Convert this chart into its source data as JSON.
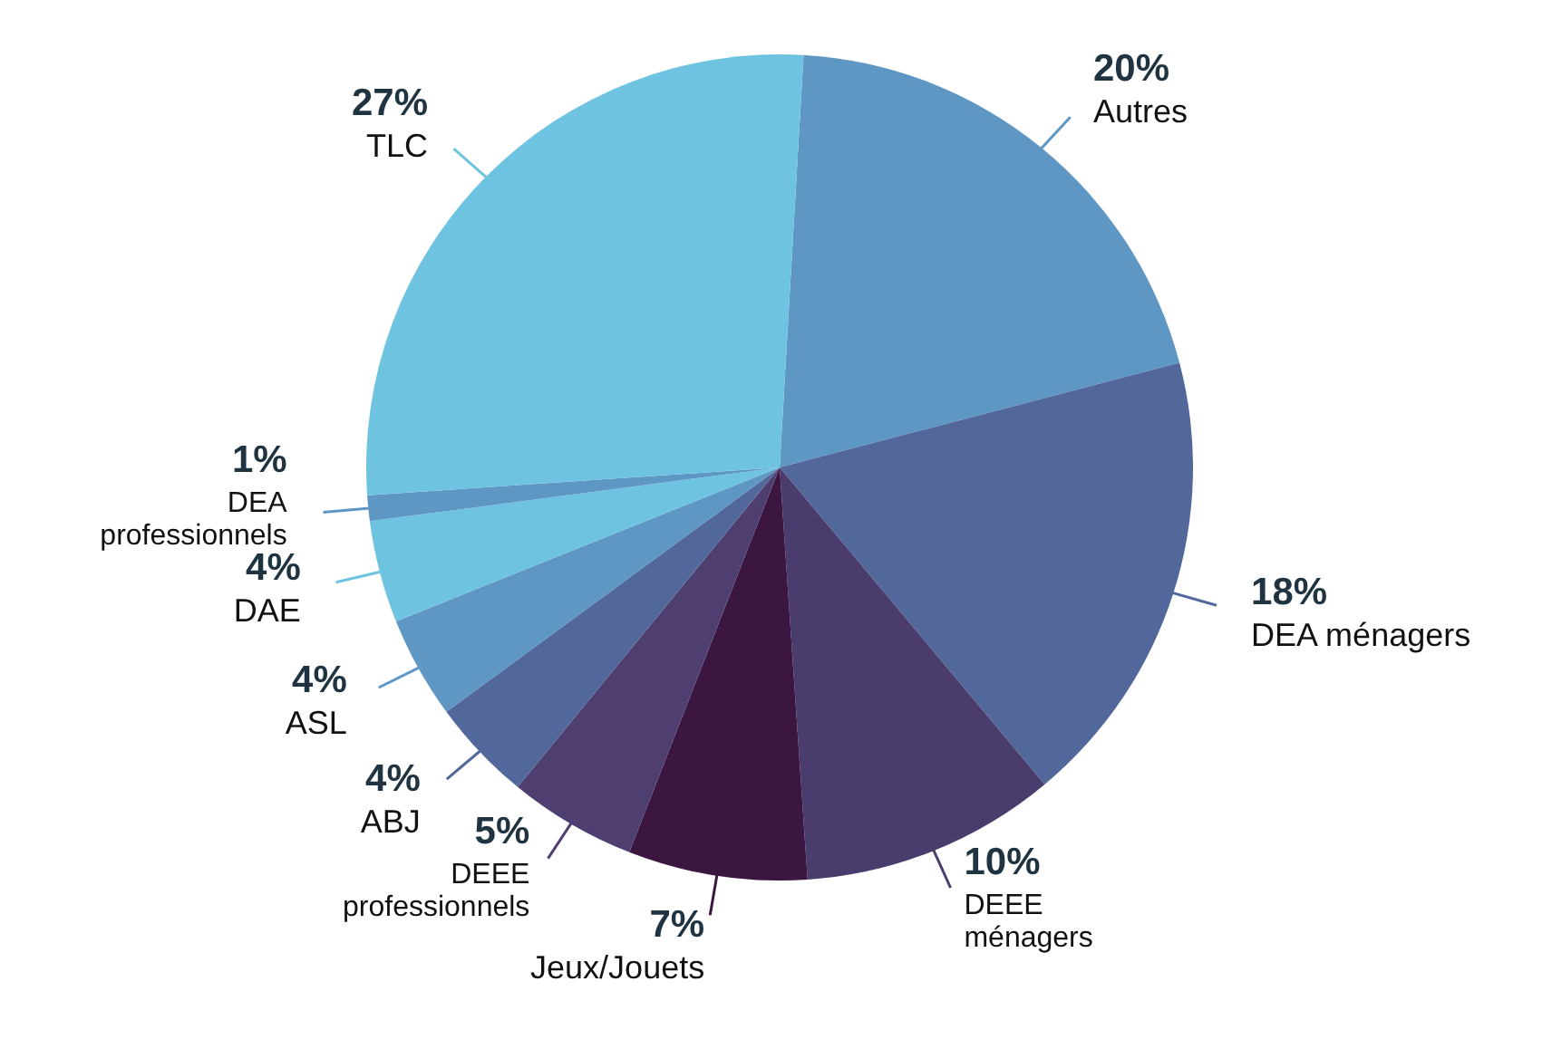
{
  "chart_data": {
    "type": "pie",
    "categories": [
      "Autres",
      "DEA ménagers",
      "DEEE ménagers",
      "Jeux/Jouets",
      "DEEE professionnels",
      "ABJ",
      "ASL",
      "DAE",
      "DEA professionnels",
      "TLC"
    ],
    "values": [
      20,
      18,
      10,
      7,
      5,
      4,
      4,
      4,
      1,
      27
    ],
    "value_labels": [
      "20%",
      "18%",
      "10%",
      "7%",
      "5%",
      "4%",
      "4%",
      "4%",
      "1%",
      "27%"
    ],
    "colors": [
      "#5e97c4",
      "#52689a",
      "#4a3d6e",
      "#3b1640",
      "#4e3f70",
      "#52689a",
      "#5e97c4",
      "#6ec3e0",
      "#5e97c4",
      "#6ec3e0"
    ]
  }
}
